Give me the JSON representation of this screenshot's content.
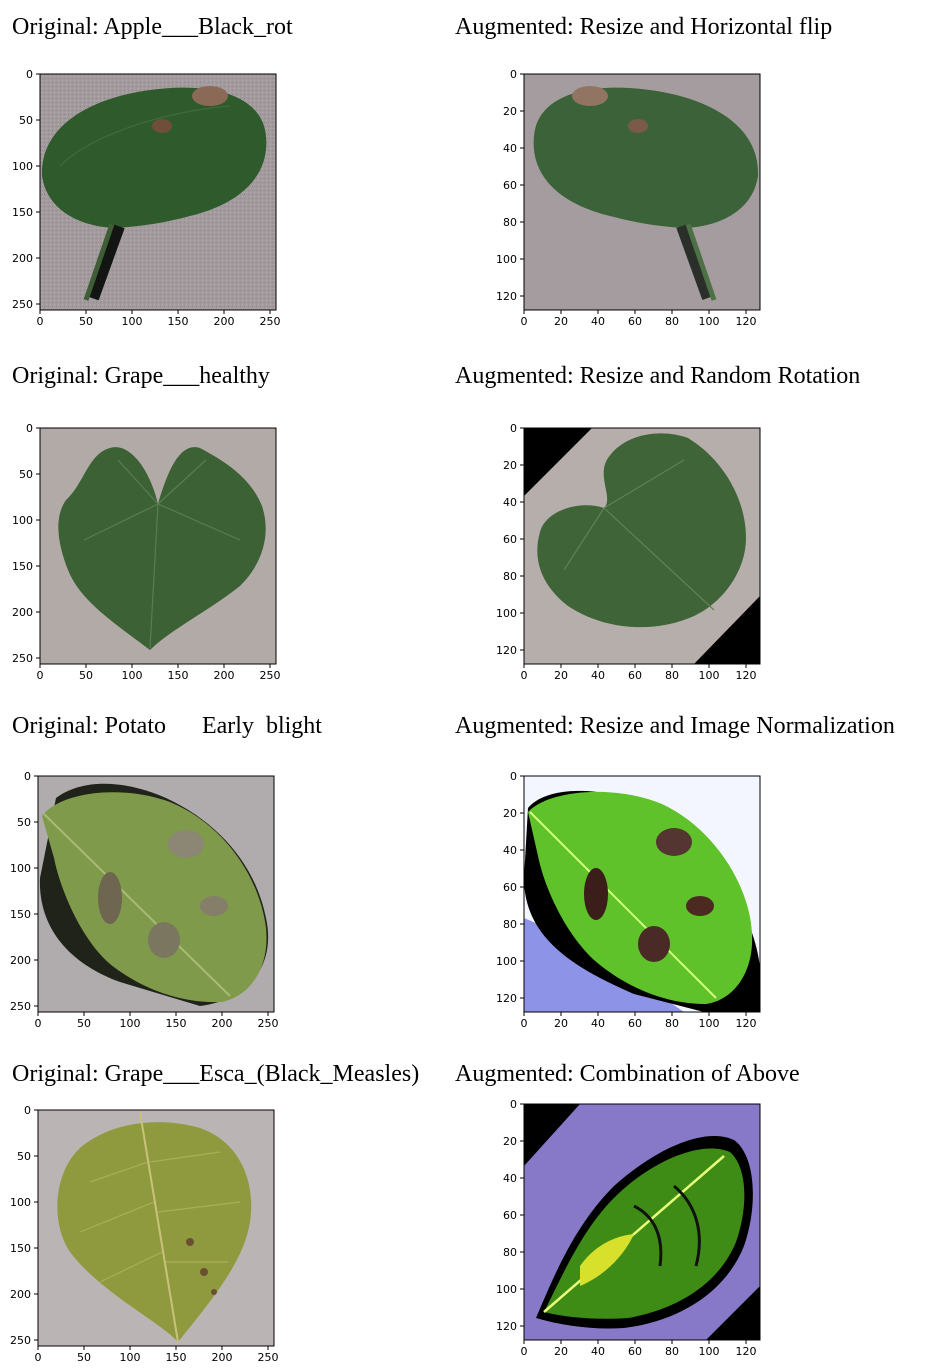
{
  "figure": {
    "rows": [
      {
        "original": {
          "caption": "Original: Apple___Black_rot",
          "image": "apple-leaf-black-rot",
          "xticks": [
            0,
            50,
            100,
            150,
            200,
            250
          ],
          "yticks": [
            0,
            50,
            100,
            150,
            200,
            250
          ],
          "extent": 256
        },
        "augmented": {
          "caption": "Augmented: Resize and Horizontal flip",
          "image": "apple-leaf-black-rot-flipped",
          "xticks": [
            0,
            20,
            40,
            60,
            80,
            100,
            120
          ],
          "yticks": [
            0,
            20,
            40,
            60,
            80,
            100,
            120
          ],
          "extent": 128
        }
      },
      {
        "original": {
          "caption": "Original: Grape___healthy",
          "image": "grape-leaf-healthy",
          "xticks": [
            0,
            50,
            100,
            150,
            200,
            250
          ],
          "yticks": [
            0,
            50,
            100,
            150,
            200,
            250
          ],
          "extent": 256
        },
        "augmented": {
          "caption": "Augmented: Resize and Random Rotation",
          "image": "grape-leaf-healthy-rotated",
          "xticks": [
            0,
            20,
            40,
            60,
            80,
            100,
            120
          ],
          "yticks": [
            0,
            20,
            40,
            60,
            80,
            100,
            120
          ],
          "extent": 128
        }
      },
      {
        "original": {
          "caption": "Original: Potato      Early  blight",
          "image": "potato-leaf-early-blight",
          "xticks": [
            0,
            50,
            100,
            150,
            200,
            250
          ],
          "yticks": [
            0,
            50,
            100,
            150,
            200,
            250
          ],
          "extent": 256
        },
        "augmented": {
          "caption": "Augmented: Resize and Image Normalization",
          "image": "potato-leaf-early-blight-normalized",
          "xticks": [
            0,
            20,
            40,
            60,
            80,
            100,
            120
          ],
          "yticks": [
            0,
            20,
            40,
            60,
            80,
            100,
            120
          ],
          "extent": 128
        }
      },
      {
        "original": {
          "caption": "Original: Grape___Esca_(Black_Measles)",
          "image": "grape-leaf-esca",
          "xticks": [
            0,
            50,
            100,
            150,
            200,
            250
          ],
          "yticks": [
            0,
            50,
            100,
            150,
            200,
            250
          ],
          "extent": 256
        },
        "augmented": {
          "caption": "Augmented: Combination of Above",
          "image": "grape-leaf-esca-combined",
          "xticks": [
            0,
            20,
            40,
            60,
            80,
            100,
            120
          ],
          "yticks": [
            0,
            20,
            40,
            60,
            80,
            100,
            120
          ],
          "extent": 128
        }
      }
    ]
  }
}
